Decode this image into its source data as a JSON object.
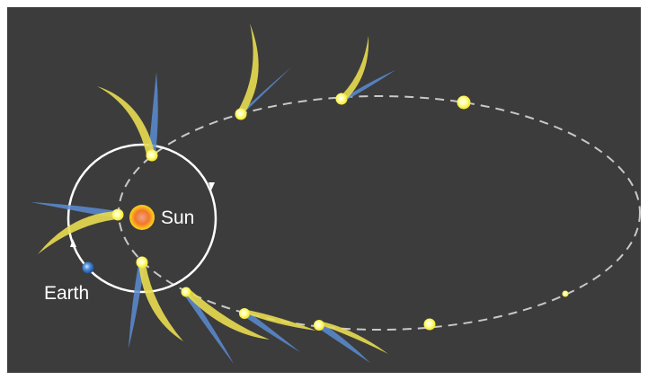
{
  "labels": {
    "sun": "Sun",
    "earth": "Earth"
  },
  "colors": {
    "background": "#3c3c3c",
    "frame": "#ffffff",
    "orbit_earth": "#ffffff",
    "orbit_comet": "#c8c8c8",
    "comet_head": "#ffff66",
    "dust_tail": "#e8dc50",
    "ion_tail": "#5a8cd2",
    "sun_core": "#f07828",
    "sun_rim": "#ffd21e",
    "earth": "#4a8ed8"
  },
  "icons": {
    "sun": "sun-icon",
    "earth": "earth-icon",
    "comet": "comet-icon"
  }
}
